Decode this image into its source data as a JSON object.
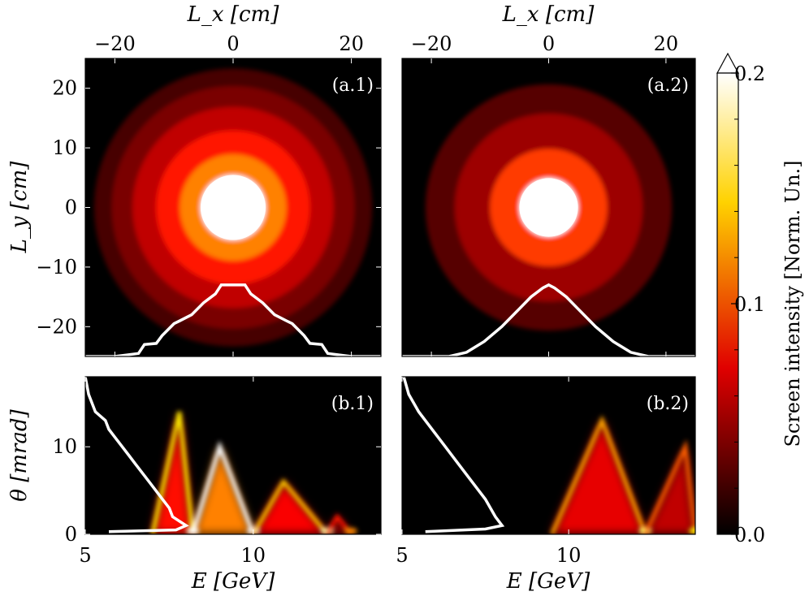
{
  "chart_data": [
    {
      "id": "a1",
      "type": "heatmap",
      "panel_label": "(a.1)",
      "xlabel": "L_x [cm]",
      "ylabel": "L_y [cm]",
      "xlim": [
        -25,
        25
      ],
      "ylim": [
        -25,
        25
      ],
      "xticks": [
        -20,
        0,
        20
      ],
      "yticks": [
        -20,
        -10,
        0,
        10,
        20
      ],
      "xtick_labels": [
        "−20",
        "0",
        "20"
      ],
      "ytick_labels": [
        "−20",
        "−10",
        "0",
        "10",
        "20"
      ],
      "core_radius_cm": 5.5,
      "rings": [
        {
          "r_cm": 5.5,
          "intensity": 0.22
        },
        {
          "r_cm": 9.0,
          "intensity": 0.11
        },
        {
          "r_cm": 13.0,
          "intensity": 0.08
        },
        {
          "r_cm": 17.0,
          "intensity": 0.055
        },
        {
          "r_cm": 20.5,
          "intensity": 0.035
        },
        {
          "r_cm": 23.5,
          "intensity": 0.02
        }
      ],
      "profile": {
        "x": [
          -25,
          -20,
          -16,
          -15,
          -13,
          -12,
          -10,
          -9,
          -7,
          -5,
          -3,
          -2,
          -1,
          0,
          1,
          2,
          3,
          5,
          7,
          9,
          10,
          12,
          13,
          15,
          16,
          20,
          25
        ],
        "y": [
          -25,
          -25,
          -24.5,
          -23,
          -22.8,
          -21.5,
          -19.5,
          -19,
          -18,
          -16,
          -14.5,
          -13,
          -13,
          -13,
          -13,
          -13,
          -14.5,
          -16,
          -18,
          -19,
          -19.5,
          -21.5,
          -22.8,
          -23,
          -24.5,
          -25,
          -25
        ]
      }
    },
    {
      "id": "a2",
      "type": "heatmap",
      "panel_label": "(a.2)",
      "xlabel": "L_x [cm]",
      "xlim": [
        -25,
        25
      ],
      "ylim": [
        -25,
        25
      ],
      "xticks": [
        -20,
        0,
        20
      ],
      "xtick_labels": [
        "−20",
        "0",
        "20"
      ],
      "core_radius_cm": 5.0,
      "rings": [
        {
          "r_cm": 5.0,
          "intensity": 0.22
        },
        {
          "r_cm": 10.0,
          "intensity": 0.09
        },
        {
          "r_cm": 16.0,
          "intensity": 0.045
        },
        {
          "r_cm": 21.0,
          "intensity": 0.025
        }
      ],
      "profile": {
        "x": [
          -25,
          -17,
          -14,
          -11,
          -8,
          -5,
          -3,
          -1,
          0,
          1,
          3,
          5,
          8,
          11,
          14,
          17,
          25
        ],
        "y": [
          -25,
          -25,
          -24.3,
          -22.5,
          -20,
          -17,
          -15,
          -13.5,
          -13,
          -13.5,
          -15,
          -17,
          -20,
          -22.5,
          -24.3,
          -25,
          -25
        ]
      }
    },
    {
      "id": "b1",
      "type": "heatmap",
      "panel_label": "(b.1)",
      "xlabel": "E [GeV]",
      "ylabel": "θ [mrad]",
      "xlim": [
        5,
        13.8
      ],
      "ylim": [
        0,
        18
      ],
      "xticks": [
        5,
        10
      ],
      "yticks": [
        0,
        10
      ],
      "xtick_labels": [
        "5",
        "10"
      ],
      "ytick_labels": [
        "0",
        "10"
      ],
      "ridges": [
        {
          "E0": 7.0,
          "E_peak": 7.8,
          "E1": 8.2,
          "theta_peak": 14,
          "intensity": 0.14
        },
        {
          "E0": 8.2,
          "E_peak": 9.0,
          "E1": 10.0,
          "theta_peak": 10,
          "intensity": 0.2
        },
        {
          "E0": 10.0,
          "E_peak": 10.9,
          "E1": 12.2,
          "theta_peak": 6,
          "intensity": 0.13
        },
        {
          "E0": 12.2,
          "E_peak": 12.5,
          "E1": 12.9,
          "theta_peak": 2,
          "intensity": 0.08
        }
      ],
      "profile": {
        "theta": [
          18,
          16,
          14,
          13,
          12,
          11,
          10,
          9,
          8,
          6,
          4,
          3,
          2,
          1.5,
          1,
          0.5,
          0.3
        ],
        "E": [
          5.0,
          5.1,
          5.3,
          5.6,
          5.7,
          5.9,
          6.1,
          6.3,
          6.5,
          6.9,
          7.3,
          7.5,
          7.6,
          7.8,
          8.0,
          7.7,
          5.7
        ]
      }
    },
    {
      "id": "b2",
      "type": "heatmap",
      "panel_label": "(b.2)",
      "xlabel": "E [GeV]",
      "xlim": [
        5,
        13.8
      ],
      "ylim": [
        0,
        18
      ],
      "xticks": [
        5,
        10
      ],
      "xtick_labels": [
        "5",
        "10"
      ],
      "ridges": [
        {
          "E0": 9.5,
          "E_peak": 11.0,
          "E1": 12.3,
          "theta_peak": 13,
          "intensity": 0.12
        },
        {
          "E0": 12.3,
          "E_peak": 13.5,
          "E1": 13.8,
          "theta_peak": 10,
          "intensity": 0.1
        }
      ],
      "profile": {
        "theta": [
          18,
          16,
          14,
          12,
          10,
          8,
          6,
          4,
          2,
          1.5,
          1,
          0.6,
          0.3
        ],
        "E": [
          5.05,
          5.2,
          5.5,
          5.9,
          6.3,
          6.7,
          7.1,
          7.5,
          7.8,
          7.9,
          8.0,
          7.5,
          5.7
        ]
      }
    }
  ],
  "colorbar": {
    "title": "Screen intensity [Norm. Un.]",
    "min": 0.0,
    "max": 0.2,
    "ticks": [
      0.0,
      0.1,
      0.2
    ],
    "tick_labels": [
      "0.0",
      "0.1",
      "0.2"
    ],
    "colormap": "hot",
    "extend": "max"
  },
  "colors": {
    "background": "#000000",
    "profile_line": "#ffffff"
  }
}
